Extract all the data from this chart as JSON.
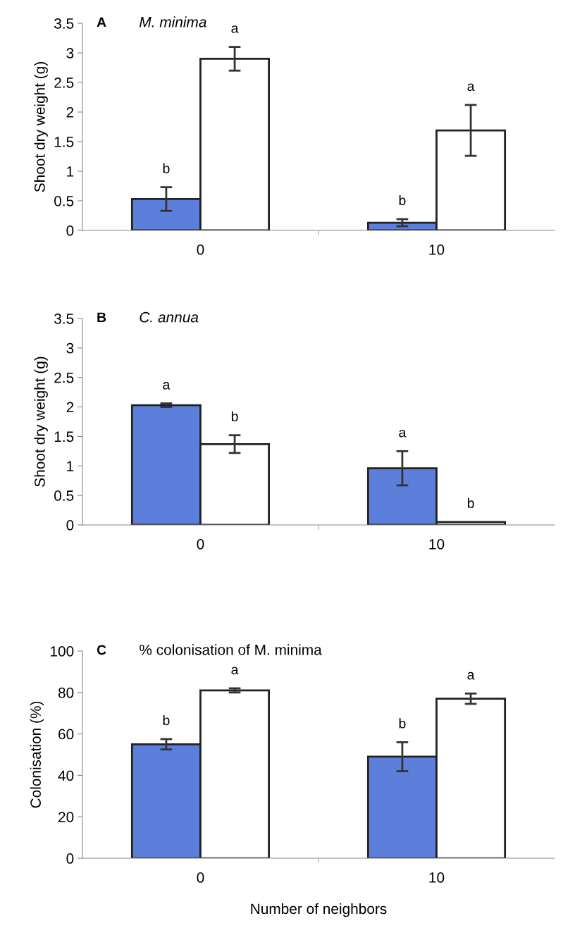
{
  "chart_data": [
    {
      "type": "bar",
      "title": "A",
      "subtitle": "M. minima",
      "ylabel": "Shoot dry weight (g)",
      "categories": [
        "0",
        "10"
      ],
      "series": [
        {
          "color": "#5b7fdb",
          "values": [
            0.53,
            0.13
          ],
          "errors": [
            0.2,
            0.06
          ]
        },
        {
          "color": "#ffffff",
          "values": [
            2.9,
            1.69
          ],
          "errors": [
            0.2,
            0.43
          ]
        }
      ],
      "ylim": [
        0,
        3.5
      ],
      "yticks": [
        0,
        0.5,
        1,
        1.5,
        2,
        2.5,
        3,
        3.5
      ],
      "grid": false,
      "annotations": [
        "b",
        "a",
        "b",
        "a"
      ]
    },
    {
      "type": "bar",
      "title": "B",
      "subtitle": "C. annua",
      "ylabel": "Shoot dry weight (g)",
      "categories": [
        "0",
        "10"
      ],
      "series": [
        {
          "color": "#5b7fdb",
          "values": [
            2.03,
            0.96
          ],
          "errors": [
            0.03,
            0.29
          ]
        },
        {
          "color": "#ffffff",
          "values": [
            1.37,
            0.05
          ],
          "errors": [
            0.15,
            null
          ]
        }
      ],
      "ylim": [
        0,
        3.5
      ],
      "yticks": [
        0,
        0.5,
        1,
        1.5,
        2,
        2.5,
        3,
        3.5
      ],
      "grid": false,
      "annotations": [
        "a",
        "b",
        "a",
        "b"
      ]
    },
    {
      "type": "bar",
      "title": "C",
      "subtitle": "% colonisation of M. minima",
      "ylabel": "Colonisation (%)",
      "xlabel": "Number of neighbors",
      "categories": [
        "0",
        "10"
      ],
      "series": [
        {
          "color": "#5b7fdb",
          "values": [
            55,
            49
          ],
          "errors": [
            2.5,
            7
          ]
        },
        {
          "color": "#ffffff",
          "values": [
            81,
            77
          ],
          "errors": [
            1,
            2.5
          ]
        }
      ],
      "ylim": [
        0,
        100
      ],
      "yticks": [
        0,
        20,
        40,
        60,
        80,
        100
      ],
      "grid": false,
      "annotations": [
        "b",
        "a",
        "b",
        "a"
      ]
    }
  ]
}
